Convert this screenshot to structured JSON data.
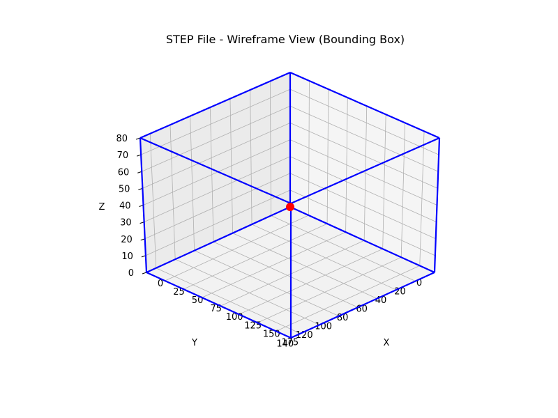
{
  "chart_data": {
    "type": "wireframe-3d",
    "title": "STEP File - Wireframe View (Bounding Box)",
    "xlabel": "X",
    "ylabel": "Y",
    "zlabel": "Z",
    "xlim": [
      0,
      195
    ],
    "ylim": [
      0,
      150
    ],
    "zlim": [
      0,
      80
    ],
    "x_ticks": [
      "0",
      "25",
      "50",
      "75",
      "100",
      "125",
      "150",
      "175"
    ],
    "y_ticks": [
      "0",
      "20",
      "40",
      "60",
      "80",
      "100",
      "120",
      "140"
    ],
    "z_ticks": [
      "0",
      "10",
      "20",
      "30",
      "40",
      "50",
      "60",
      "70",
      "80"
    ],
    "grid": true,
    "bounding_box": {
      "min": [
        0,
        0,
        0
      ],
      "max": [
        195,
        150,
        80
      ]
    },
    "edge_color": "#0000ff",
    "marker": {
      "point": [
        0,
        0,
        0
      ],
      "color": "#ff0000"
    },
    "pane_colors": {
      "floor": "#f2f2f2",
      "left_wall": "#ebebeb",
      "right_wall": "#f5f5f5"
    }
  }
}
